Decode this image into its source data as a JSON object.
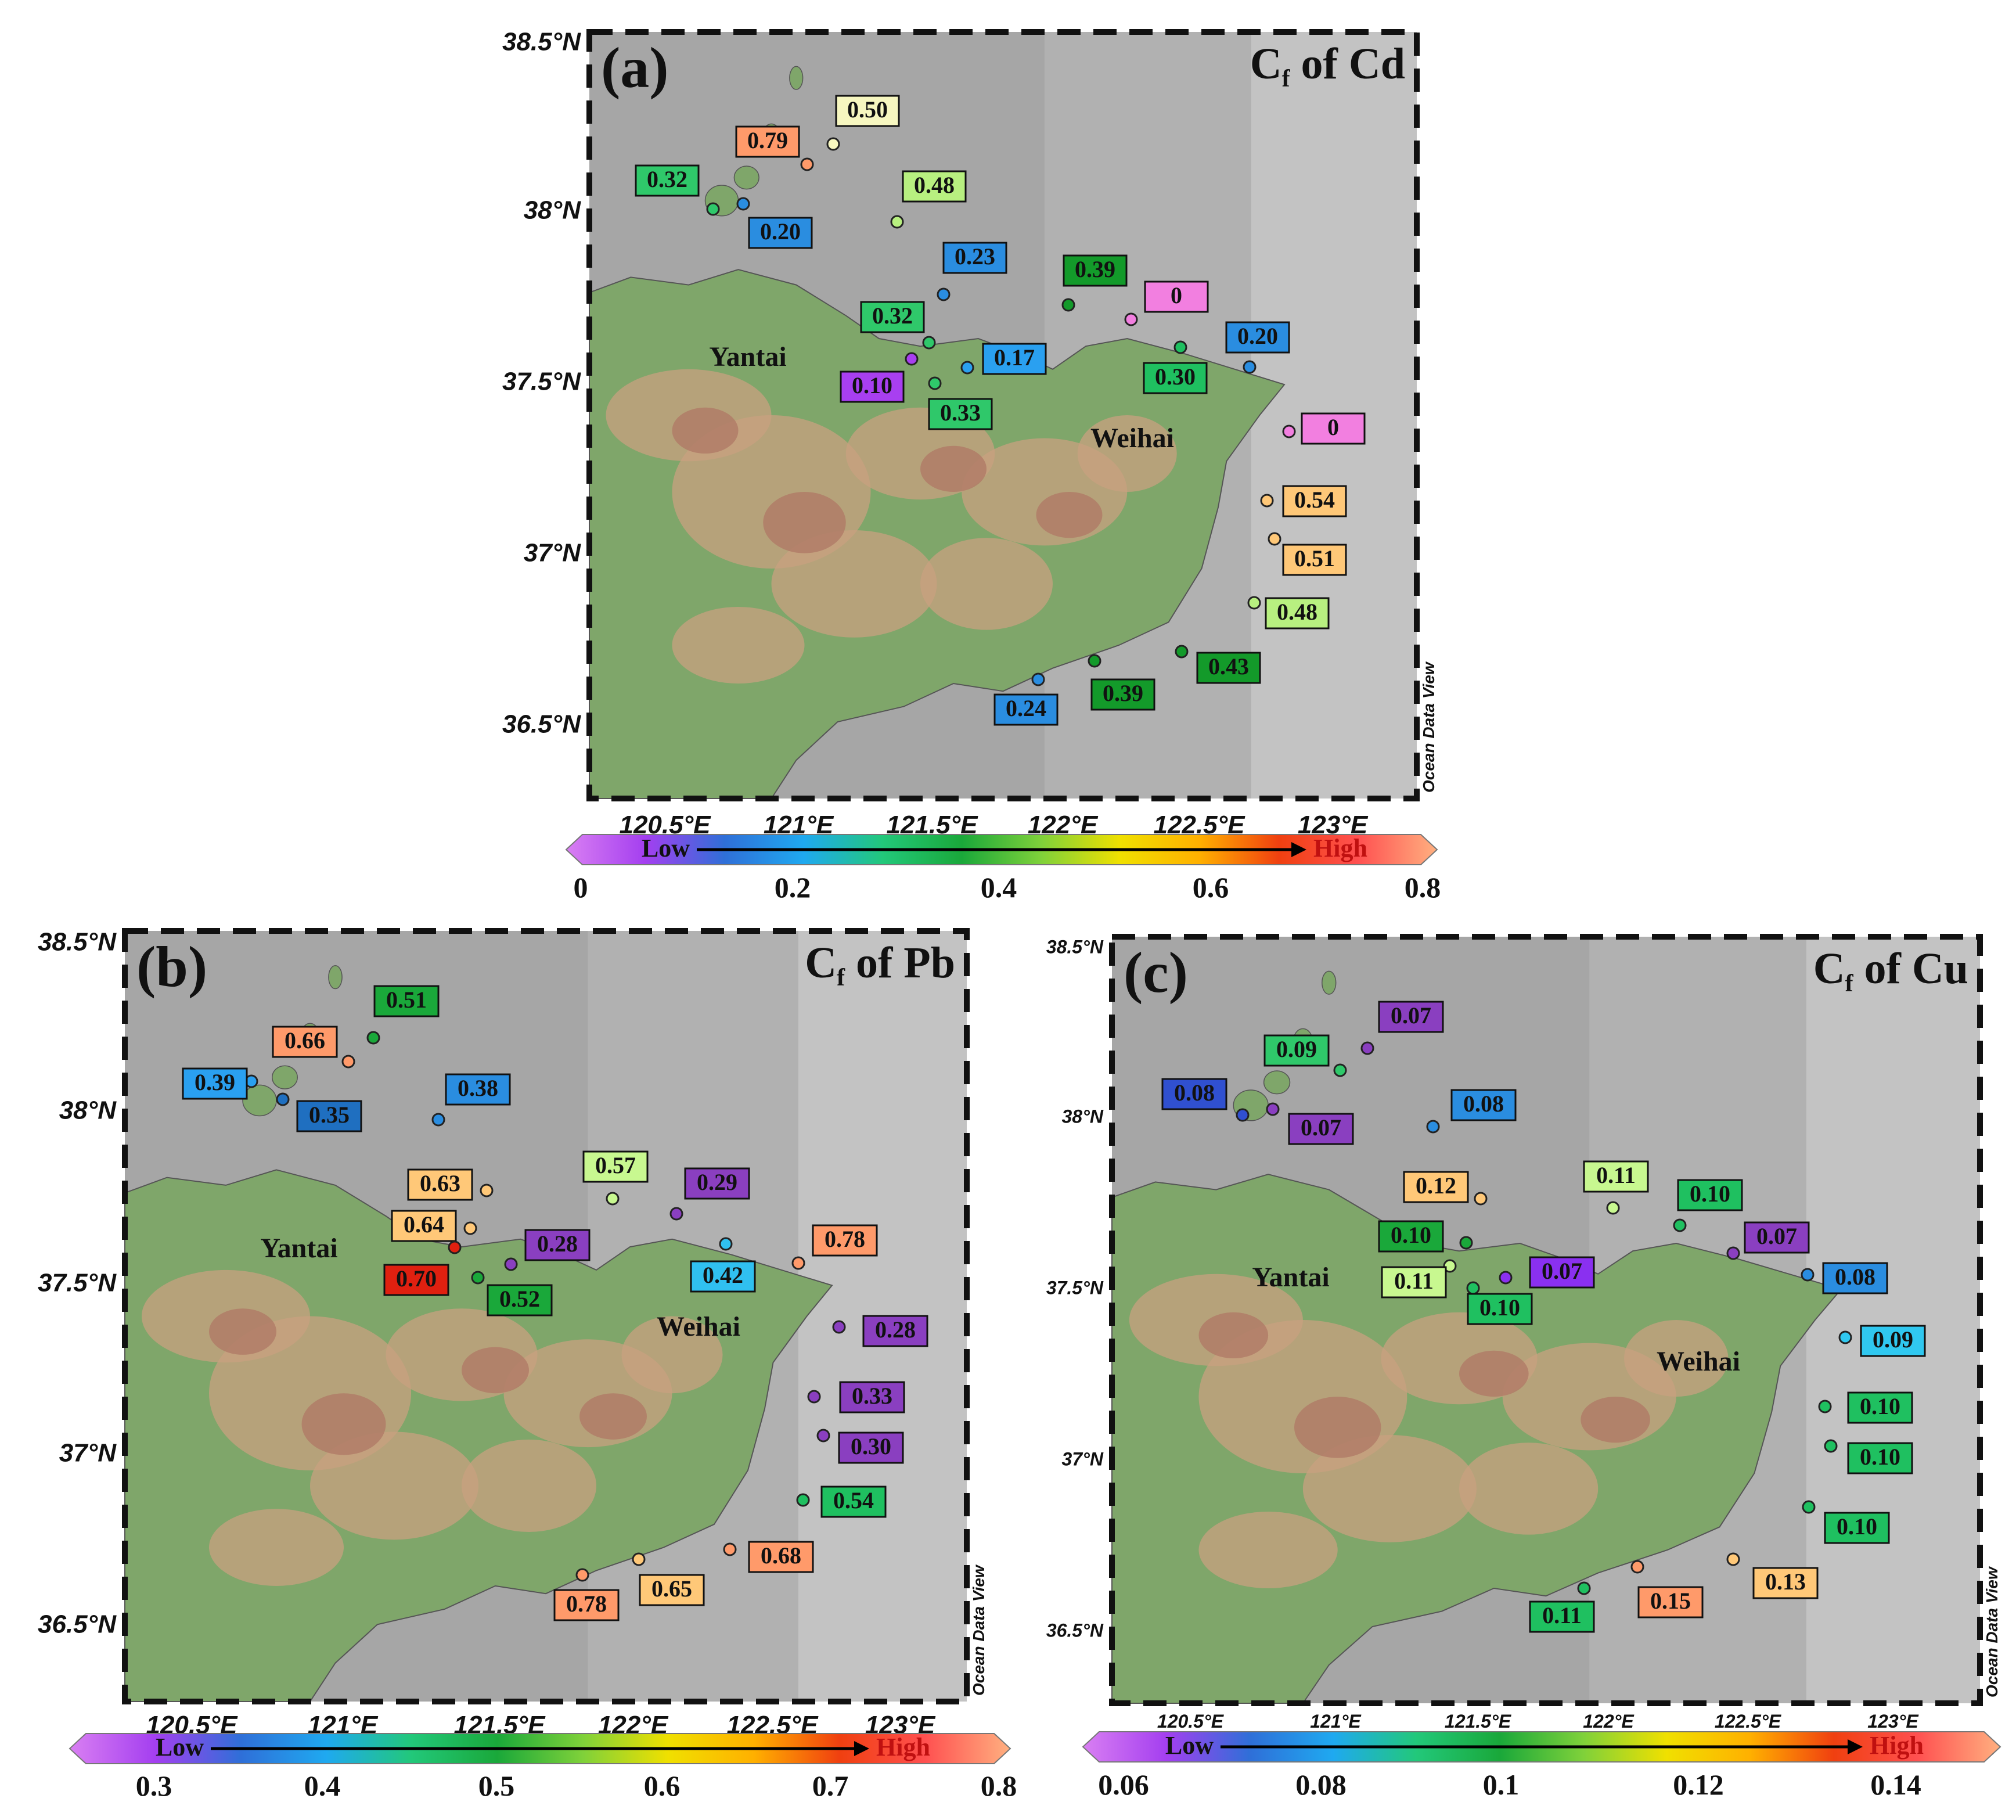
{
  "colorbar_colors": [
    "#d97ff2",
    "#a43ff0",
    "#2f6fd8",
    "#1fa9f0",
    "#22c87a",
    "#1aa83a",
    "#7fd13a",
    "#f0e000",
    "#ffb000",
    "#f04010",
    "#ff5050",
    "#ffb080"
  ],
  "low_label": "Low",
  "high_label": "High",
  "panels": [
    {
      "id": "a",
      "letter": "(a)",
      "title_main": "C",
      "title_sub": "f",
      "title_rest": " of Cd",
      "lat_ticks": [
        "38.5°N",
        "38°N",
        "37.5°N",
        "37°N",
        "36.5°N"
      ],
      "lon_ticks": [
        "120.5°E",
        "121°E",
        "121.5°E",
        "122°E",
        "122.5°E",
        "123°E"
      ],
      "cb_ticks": [
        "0",
        "0.2",
        "0.4",
        "0.6",
        "0.8"
      ],
      "cities": [
        {
          "name": "Yantai"
        },
        {
          "name": "Weihai"
        }
      ],
      "odv": "Ocean Data View",
      "stations": [
        {
          "value": "0.50",
          "color": "#f7f7c0"
        },
        {
          "value": "0.79",
          "color": "#ff9a6a"
        },
        {
          "value": "0.32",
          "color": "#2fc86a"
        },
        {
          "value": "0.20",
          "color": "#2a8de0"
        },
        {
          "value": "0.48",
          "color": "#b8f080"
        },
        {
          "value": "0.23",
          "color": "#2a8de0"
        },
        {
          "value": "0.39",
          "color": "#139a2a"
        },
        {
          "value": "0",
          "color": "#f27fe0"
        },
        {
          "value": "0.32",
          "color": "#2fc86a"
        },
        {
          "value": "0.20",
          "color": "#2a8de0"
        },
        {
          "value": "0.17",
          "color": "#2aa0f0"
        },
        {
          "value": "0.10",
          "color": "#a83ff0"
        },
        {
          "value": "0.30",
          "color": "#1fc060"
        },
        {
          "value": "0.33",
          "color": "#2fc86a"
        },
        {
          "value": "0",
          "color": "#f27fe0"
        },
        {
          "value": "0.54",
          "color": "#ffc878"
        },
        {
          "value": "0.51",
          "color": "#ffc878"
        },
        {
          "value": "0.48",
          "color": "#b8f080"
        },
        {
          "value": "0.43",
          "color": "#139a2a"
        },
        {
          "value": "0.39",
          "color": "#139a2a"
        },
        {
          "value": "0.24",
          "color": "#2a8de0"
        }
      ]
    },
    {
      "id": "b",
      "letter": "(b)",
      "title_main": "C",
      "title_sub": "f",
      "title_rest": " of Pb",
      "lat_ticks": [
        "38.5°N",
        "38°N",
        "37.5°N",
        "37°N",
        "36.5°N"
      ],
      "lon_ticks": [
        "120.5°E",
        "121°E",
        "121.5°E",
        "122°E",
        "122.5°E",
        "123°E"
      ],
      "cb_ticks": [
        "0.3",
        "0.4",
        "0.5",
        "0.6",
        "0.7",
        "0.8"
      ],
      "cities": [
        {
          "name": "Yantai"
        },
        {
          "name": "Weihai"
        }
      ],
      "odv": "Ocean Data View",
      "stations": [
        {
          "value": "0.51",
          "color": "#1aa83a"
        },
        {
          "value": "0.66",
          "color": "#ff9a6a"
        },
        {
          "value": "0.39",
          "color": "#2aa0f0"
        },
        {
          "value": "0.35",
          "color": "#1f6fc0"
        },
        {
          "value": "0.38",
          "color": "#2a8de0"
        },
        {
          "value": "0.63",
          "color": "#ffc878"
        },
        {
          "value": "0.57",
          "color": "#c8f890"
        },
        {
          "value": "0.29",
          "color": "#8a3fc0"
        },
        {
          "value": "0.64",
          "color": "#ffc878"
        },
        {
          "value": "0.28",
          "color": "#8a3fc0"
        },
        {
          "value": "0.70",
          "color": "#e02010"
        },
        {
          "value": "0.52",
          "color": "#1aa83a"
        },
        {
          "value": "0.42",
          "color": "#30c0f0"
        },
        {
          "value": "0.78",
          "color": "#ff9a6a"
        },
        {
          "value": "0.28",
          "color": "#8a3fc0"
        },
        {
          "value": "0.33",
          "color": "#8a3fc0"
        },
        {
          "value": "0.30",
          "color": "#8a3fc0"
        },
        {
          "value": "0.54",
          "color": "#1fc060"
        },
        {
          "value": "0.68",
          "color": "#ff9a6a"
        },
        {
          "value": "0.65",
          "color": "#ffc878"
        },
        {
          "value": "0.78",
          "color": "#ff9a6a"
        }
      ]
    },
    {
      "id": "c",
      "letter": "(c)",
      "title_main": "C",
      "title_sub": "f",
      "title_rest": " of Cu",
      "lat_ticks": [
        "38.5°N",
        "38°N",
        "37.5°N",
        "37°N",
        "36.5°N"
      ],
      "lon_ticks": [
        "120.5°E",
        "121°E",
        "121.5°E",
        "122°E",
        "122.5°E",
        "123°E"
      ],
      "cb_ticks": [
        "0.06",
        "0.08",
        "0.1",
        "0.12",
        "0.14"
      ],
      "cities": [
        {
          "name": "Yantai"
        },
        {
          "name": "Weihai"
        }
      ],
      "odv": "Ocean Data View",
      "stations": [
        {
          "value": "0.07",
          "color": "#8a3fc0"
        },
        {
          "value": "0.09",
          "color": "#2fc86a"
        },
        {
          "value": "0.08",
          "color": "#3050d0"
        },
        {
          "value": "0.07",
          "color": "#8a3fc0"
        },
        {
          "value": "0.08",
          "color": "#2a8de0"
        },
        {
          "value": "0.12",
          "color": "#ffc878"
        },
        {
          "value": "0.11",
          "color": "#c8f890"
        },
        {
          "value": "0.10",
          "color": "#1fc060"
        },
        {
          "value": "0.10",
          "color": "#1aa83a"
        },
        {
          "value": "0.07",
          "color": "#8a3fc0"
        },
        {
          "value": "0.11",
          "color": "#c8f890"
        },
        {
          "value": "0.07",
          "color": "#8a30f0"
        },
        {
          "value": "0.10",
          "color": "#1fc060"
        },
        {
          "value": "0.08",
          "color": "#2a8de0"
        },
        {
          "value": "0.09",
          "color": "#30c8f0"
        },
        {
          "value": "0.10",
          "color": "#1fc060"
        },
        {
          "value": "0.10",
          "color": "#1fc060"
        },
        {
          "value": "0.10",
          "color": "#1fc060"
        },
        {
          "value": "0.13",
          "color": "#ffc878"
        },
        {
          "value": "0.15",
          "color": "#ff9a6a"
        },
        {
          "value": "0.11",
          "color": "#1fc060"
        }
      ]
    }
  ]
}
